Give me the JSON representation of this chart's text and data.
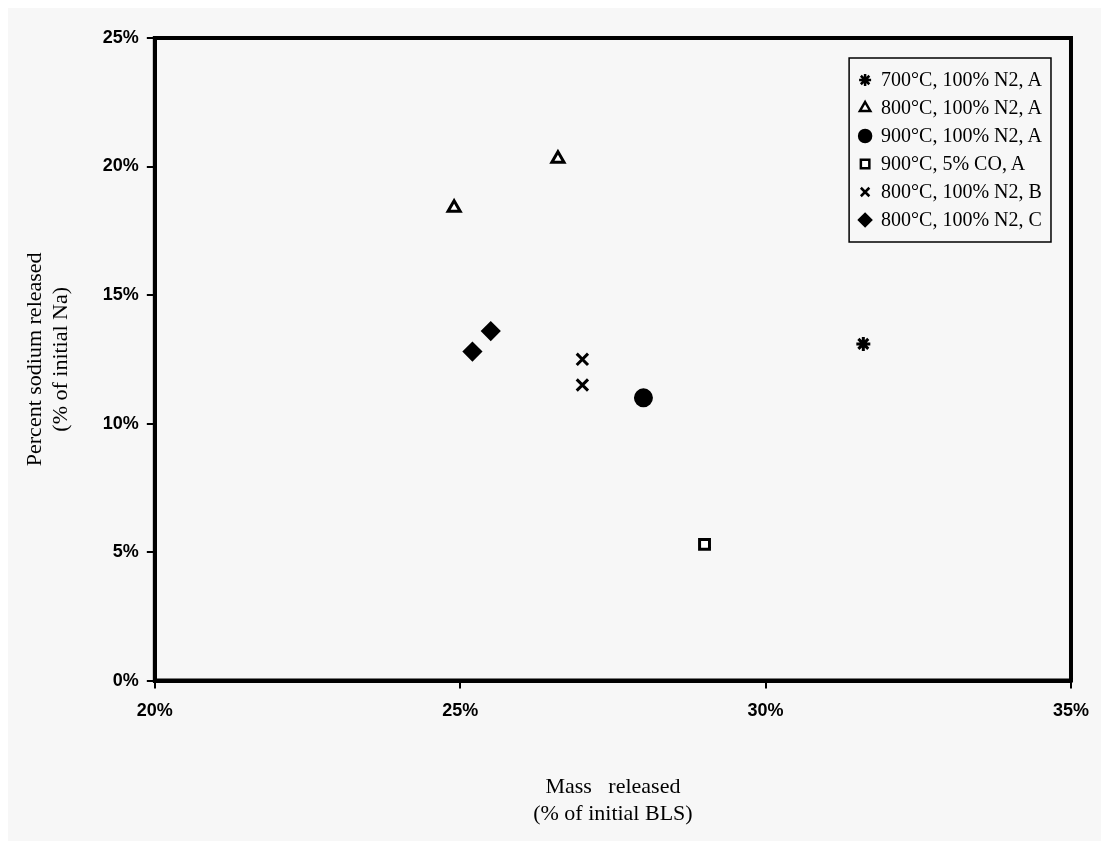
{
  "chart_data": {
    "type": "scatter",
    "xlabel": "Mass   released\n(% of initial BLS)",
    "ylabel": "Percent sodium released\n(% of initial Na)",
    "xlim": [
      20,
      35
    ],
    "xticks": [
      {
        "value": 20,
        "label": "20%"
      },
      {
        "value": 25,
        "label": "25%"
      },
      {
        "value": 30,
        "label": "30%"
      },
      {
        "value": 35,
        "label": "35%"
      }
    ],
    "ylim": [
      0,
      25
    ],
    "yticks": [
      {
        "value": 0,
        "label": "0%"
      },
      {
        "value": 5,
        "label": "5%"
      },
      {
        "value": 10,
        "label": "10%"
      },
      {
        "value": 15,
        "label": "15%"
      },
      {
        "value": 20,
        "label": "20%"
      },
      {
        "value": 25,
        "label": "25%"
      }
    ],
    "grid": false,
    "legend": "top right",
    "series": [
      {
        "name": "700°C, 100% N2, A",
        "color": "#000000",
        "x": [
          31.6
        ],
        "values": [
          13.1
        ]
      },
      {
        "name": "800°C, 100% N2, A",
        "color": "#000000",
        "marker": "triangle",
        "x": [
          26.6,
          24.9
        ],
        "values": [
          20.3,
          18.4
        ]
      },
      {
        "name": "900°C, 100% N2, A",
        "color": "#000000",
        "marker": "circle",
        "x": [
          28.0
        ],
        "values": [
          11.0
        ]
      },
      {
        "name": "900°C, 5% CO, A",
        "color": "#000000",
        "marker": "square",
        "x": [
          29.0
        ],
        "values": [
          5.3
        ]
      },
      {
        "name": "800°C, 100% N2, B",
        "color": "#000000",
        "marker": "cross",
        "x": [
          27.0,
          27.0
        ],
        "values": [
          12.5,
          11.5
        ]
      },
      {
        "name": "800°C, 100% N2, C",
        "color": "#000000",
        "marker": "diamond",
        "x": [
          25.5,
          25.2
        ],
        "values": [
          13.6,
          12.8
        ]
      }
    ]
  }
}
